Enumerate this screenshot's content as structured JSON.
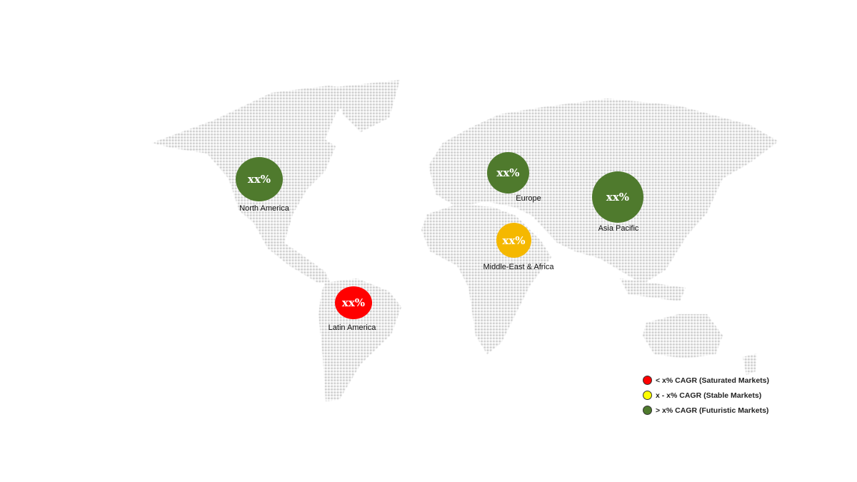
{
  "regions": [
    {
      "name": "North America",
      "value": "xx%",
      "category": "futuristic",
      "color": "#4f7a2d"
    },
    {
      "name": "Europe",
      "value": "xx%",
      "category": "futuristic",
      "color": "#4f7a2d"
    },
    {
      "name": "Asia Pacific",
      "value": "xx%",
      "category": "futuristic",
      "color": "#4f7a2d"
    },
    {
      "name": "Middle-East & Africa",
      "value": "xx%",
      "category": "stable",
      "color": "#f5b800"
    },
    {
      "name": "Latin America",
      "value": "xx%",
      "category": "saturated",
      "color": "#ff0000"
    }
  ],
  "legend": [
    {
      "label": "< x% CAGR (Saturated Markets)",
      "color": "#ff0000"
    },
    {
      "label": "x - x% CAGR (Stable Markets)",
      "color": "#ffff00"
    },
    {
      "label": "> x% CAGR (Futuristic Markets)",
      "color": "#4f7a2d"
    }
  ],
  "map_dot_color": "#c8c8c8"
}
